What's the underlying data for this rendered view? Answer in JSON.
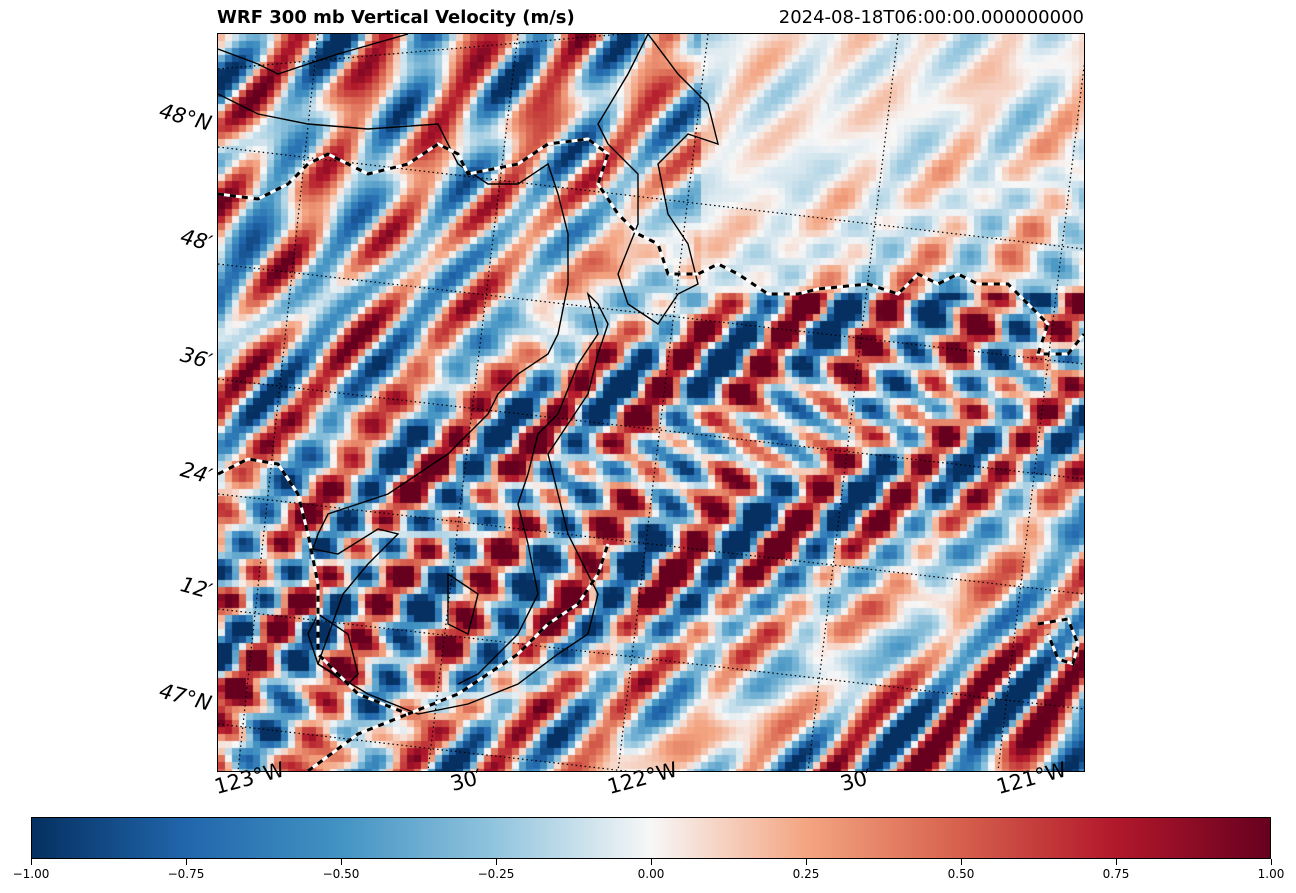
{
  "header": {
    "title": "WRF 300 mb Vertical Velocity (m/s)",
    "valid_time": "2024-08-18T06:00:00.000000000"
  },
  "map": {
    "lat_labels": [
      "48°N",
      "48′",
      "36′",
      "24′",
      "12′",
      "47°N"
    ],
    "lon_labels": [
      "123°W",
      "30′",
      "122°W",
      "30′",
      "121°W"
    ],
    "colormap": "RdBu_r",
    "overlays": [
      "coastline",
      "state-boundary-dashed",
      "graticule-dotted"
    ]
  },
  "colorbar": {
    "ticks": [
      "−1.00",
      "−0.75",
      "−0.50",
      "−0.25",
      "0.00",
      "0.25",
      "0.50",
      "0.75",
      "1.00"
    ],
    "vmin": -1.0,
    "vmax": 1.0,
    "colors": {
      "neg_max": "#053061",
      "neg_mid": "#2166ac",
      "neutral": "#f7f7f7",
      "pos_mid": "#d6604d",
      "pos_max": "#67001f"
    }
  }
}
